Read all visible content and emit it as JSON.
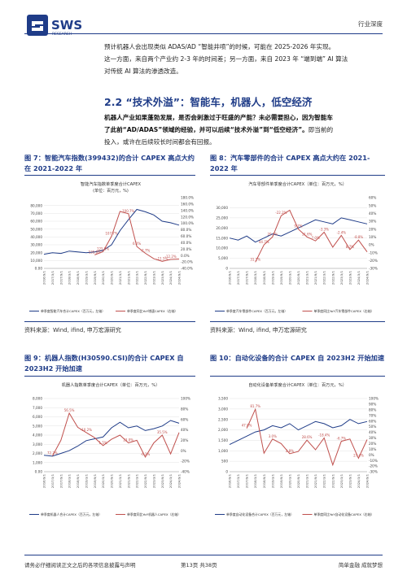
{
  "header": {
    "logo_text": "SWS",
    "logo_sub": "RESEARCH",
    "tag": "行业深度"
  },
  "intro": {
    "line1": "预计机器人会出现类似 ADAS/AD “智能井喷”的时候，可能在 2025-2026 年实现。",
    "line2": "这一方面，来自两个产业约 2-3 年的时间差；另一方面，来自 2023 年 “端到端” AI 算法",
    "line3": "对传统 AI 算法的渗透改造。"
  },
  "section": {
    "title": "2.2 “技术外溢”：智能车，机器人，低空经济",
    "p1_bold": "机器人产业如果蓬勃发展，是否会刺激过于旺盛的产能？未必需要担心，因为智能车",
    "p2_bold": "了此前“AD/ADAS”领域的经验，并可以后续“技术外溢”到“低空经济”。",
    "p2_rest": "即当前的",
    "p3": "投入，或许在后续较长时间都会有回报。"
  },
  "figures": [
    {
      "title": "图 7：智能汽车指数(399432)的合计 CAPEX 高点大约在 2021-2022 年",
      "source": "资料来源：Wind, ifind, 申万宏源研究",
      "chart_data": {
        "type": "line",
        "title": "智能汽车指数单季度合计CAPEX",
        "subtitle": "(单位：百万元，%)",
        "ylim_left": [
          0,
          90000
        ],
        "yticks_left": [
          "0.00",
          "10,000",
          "20,000",
          "30,000",
          "40,000",
          "50,000",
          "60,000",
          "70,000",
          "80,000"
        ],
        "ylim_right": [
          -0.4,
          1.8
        ],
        "yticks_right": [
          "-40.0%",
          "-20.0%",
          "0.0%",
          "20.0%",
          "40.0%",
          "60.0%",
          "80.0%",
          "100.0%",
          "120.0%",
          "140.0%",
          "160.0%",
          "180.0%"
        ],
        "x": [
          "2016/9/1",
          "2017/3/1",
          "2017/9/1",
          "2018/3/1",
          "2018/9/1",
          "2019/3/1",
          "2019/9/1",
          "2020/3/1",
          "2020/9/1",
          "2021/3/1",
          "2021/9/1",
          "2022/3/1",
          "2022/9/1",
          "2023/3/1",
          "2023/9/1",
          "2024/3/1",
          "2024/9/1"
        ],
        "series": [
          {
            "name": "单季度智能汽车合计CAPEX（百万元，左轴）",
            "axis": "left",
            "color": "#1f3c88",
            "values": [
              18000,
              20000,
              19000,
              22000,
              21000,
              20000,
              21000,
              23000,
              30000,
              48000,
              62000,
              75000,
              72000,
              68000,
              60000,
              58000,
              55000
            ]
          },
          {
            "name": "单季度同比YoY增速CAPEX（右轴）",
            "axis": "right",
            "color": "#c0504d",
            "values": [
              null,
              null,
              null,
              null,
              null,
              null,
              0.02,
              0.12,
              0.6,
              1.37,
              1.3,
              0.28,
              0.07,
              -0.1,
              -0.18,
              -0.12,
              -0.11
            ]
          }
        ],
        "annotations": [
          "135.9%",
          "125.8%",
          "107.7%",
          "100.7%",
          "6.2%",
          "-2.7%",
          "-11.5%",
          "-12.2%"
        ]
      }
    },
    {
      "title": "图 8：汽车零部件的合计 CAPEX 高点大约在 2021-2022 年",
      "source": "资料来源：Wind, ifind, 申万宏源研究",
      "chart_data": {
        "type": "line",
        "title": "汽车零部件单季度合计CAPEX（单位：百万元，%）",
        "ylim_left": [
          0,
          35000
        ],
        "yticks_left": [
          "0",
          "5,000",
          "10,000",
          "15,000",
          "20,000",
          "25,000",
          "30,000"
        ],
        "ylim_right": [
          -0.3,
          0.6
        ],
        "yticks_right": [
          "-30%",
          "-20%",
          "-10%",
          "0%",
          "10%",
          "20%",
          "30%",
          "40%",
          "50%",
          "60%"
        ],
        "x": [
          "2016/9/1",
          "2017/3/1",
          "2017/9/1",
          "2018/3/1",
          "2018/9/1",
          "2019/3/1",
          "2019/9/1",
          "2020/3/1",
          "2020/9/1",
          "2021/3/1",
          "2021/9/1",
          "2022/3/1",
          "2022/9/1",
          "2023/3/1",
          "2023/9/1",
          "2024/3/1",
          "2024/9/1"
        ],
        "series": [
          {
            "name": "单季度汽车零部件CAPEX（百万元，左轴）",
            "axis": "left",
            "color": "#1f3c88",
            "values": [
              15000,
              14000,
              16000,
              13000,
              15000,
              17000,
              16000,
              18000,
              20000,
              22000,
              24000,
              23000,
              22000,
              25000,
              24000,
              23000,
              22000
            ]
          },
          {
            "name": "单季度同比YoY汽车零部件CAPEX（右轴）",
            "axis": "right",
            "color": "#c0504d",
            "values": [
              null,
              null,
              null,
              -0.22,
              0.0,
              0.1,
              0.37,
              0.44,
              0.2,
              0.1,
              0.05,
              0.16,
              -0.03,
              0.12,
              -0.06,
              0.06,
              -0.09
            ]
          }
        ],
        "annotations": [
          "31.1%",
          "44.7%",
          "20.7%",
          "-22.2%",
          "9.7%",
          "11.6%",
          "7.0%",
          "-3.3%",
          "-2.4%",
          "8.7%",
          "-8.8%"
        ]
      }
    },
    {
      "title": "图 9：机器人指数(H30590.CSI)的合计 CAPEX 自 2023H2 开始加速",
      "chart_data": {
        "type": "line",
        "title": "机器人指数单季度合计CAPEX（单位：百万元，%）",
        "ylim_left": [
          0,
          8000
        ],
        "yticks_left": [
          "0.00",
          "1,000",
          "2,000",
          "3,000",
          "4,000",
          "5,000",
          "6,000",
          "7,000",
          "8,000"
        ],
        "ylim_right": [
          -0.4,
          1.0
        ],
        "yticks_right": [
          "-40%",
          "-20%",
          "0%",
          "20%",
          "40%",
          "60%",
          "80%",
          "100%"
        ],
        "x": [
          "2016/9/1",
          "2017/3/1",
          "2017/9/1",
          "2018/3/1",
          "2018/9/1",
          "2019/3/1",
          "2019/9/1",
          "2020/3/1",
          "2020/9/1",
          "2021/3/1",
          "2021/9/1",
          "2022/3/1",
          "2022/9/1",
          "2023/3/1",
          "2023/9/1",
          "2024/3/1",
          "2024/9/1"
        ],
        "series": [
          {
            "name": "单季度机器人合计CAPEX（百万元，左轴）",
            "axis": "left",
            "color": "#1f3c88",
            "values": [
              1800,
              1700,
              2000,
              2300,
              2800,
              3400,
              3600,
              3800,
              4800,
              5400,
              4800,
              5000,
              4500,
              4700,
              5000,
              5600,
              5300
            ]
          },
          {
            "name": "单季度同比YoY机器人CAPEX（右轴）",
            "axis": "right",
            "color": "#c0504d",
            "values": [
              null,
              -0.1,
              0.2,
              0.72,
              0.45,
              0.35,
              0.25,
              0.1,
              0.22,
              0.3,
              0.15,
              0.2,
              -0.12,
              0.15,
              0.3,
              -0.06,
              0.35
            ]
          }
        ],
        "annotations": [
          "72.2%",
          "56.5%",
          "-10.2%",
          "1.5%",
          "23.0%",
          "-6.2%",
          "35.5%"
        ]
      }
    },
    {
      "title": "图 10：自动化设备的合计 CAPEX 自 2023H2 开始加速",
      "chart_data": {
        "type": "line",
        "title": "自动化设备单季度合计CAPEX（单位：百万元，%）",
        "ylim_left": [
          0,
          3500
        ],
        "yticks_left": [
          "0",
          "500",
          "1,000",
          "1,500",
          "2,000",
          "2,500",
          "3,000",
          "3,500"
        ],
        "ylim_right": [
          -0.3,
          1.0
        ],
        "yticks_right": [
          "-30%",
          "-20%",
          "-10%",
          "0%",
          "10%",
          "20%",
          "30%",
          "40%",
          "50%",
          "60%",
          "70%",
          "80%",
          "90%",
          "100%"
        ],
        "x": [
          "2016/9/1",
          "2017/3/1",
          "2017/9/1",
          "2018/3/1",
          "2018/9/1",
          "2019/3/1",
          "2019/9/1",
          "2020/3/1",
          "2020/9/1",
          "2021/3/1",
          "2021/9/1",
          "2022/3/1",
          "2022/9/1",
          "2023/3/1",
          "2023/9/1",
          "2024/3/1",
          "2024/9/1"
        ],
        "series": [
          {
            "name": "单季度自动化设备合计CAPEX（百万元，左轴）",
            "axis": "left",
            "color": "#1f3c88",
            "values": [
              1300,
              1500,
              1700,
              1900,
              2000,
              2200,
              2100,
              2300,
              2000,
              2200,
              2400,
              2300,
              2100,
              2200,
              2500,
              2300,
              2400
            ]
          },
          {
            "name": "单季度同比YoY自动化设备CAPEX（右轴）",
            "axis": "right",
            "color": "#c0504d",
            "values": [
              null,
              null,
              0.47,
              0.81,
              0.03,
              0.28,
              0.2,
              0.02,
              0.06,
              0.26,
              0.09,
              0.3,
              -0.18,
              0.24,
              0.28,
              -0.06,
              0.27
            ]
          }
        ],
        "annotations": [
          "47.8%",
          "81.7%",
          "3.0%",
          "2.8%",
          "28.6%",
          "-18.4%",
          "-6.7%",
          "27.4%"
        ]
      }
    }
  ],
  "footer": {
    "left": "请务必仔细阅读正文之后的各项信息披露与声明",
    "mid": "第13页 共38页",
    "right": "简单金融 成就梦想"
  }
}
